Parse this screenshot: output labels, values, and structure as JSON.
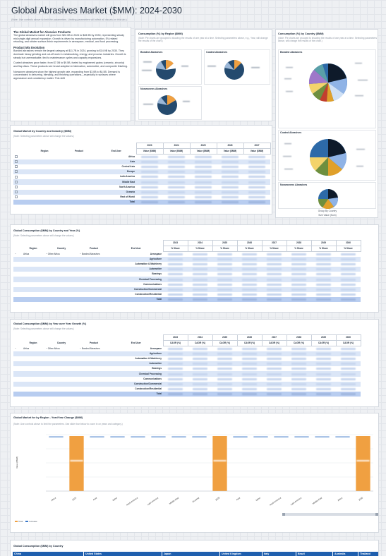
{
  "page": {
    "title": "Global Abrasives Market ($MM): 2024-2030",
    "subtitle": "(Note: Use controls above to limit the parameters. Limiting parameters will affect all visuals on this tab.)"
  },
  "colors": {
    "accent": "#1f5fae",
    "band": "#dbe6f7",
    "total": "#b8cdf0",
    "orange": "#f0a041",
    "blue_line": "#3a78c9"
  },
  "summary": {
    "heading": "The Global Market for Abrasive Products",
    "para1": "The global abrasives market will grow from $22.0B in 2024 to $28.9B by 2030, representing steady mid-single-digit annual expansion. Growth is driven by manufacturing automation, EV-related retooling, and stricter surface-finish requirements in aerospace, medical, and food processing.",
    "subheading": "Product Mix Evolution",
    "para2": "Bonded abrasives remain the largest category at $11.7B in 2024, growing to $14.9B by 2030. They dominate heavy grinding and cut-off work in metalworking, energy, and process industries. Growth is steady but unremarkable, tied to maintenance cycles and capacity expansions.",
    "para3": "Coated abrasives grow faster, from $7.0B to $9.5B, fueled by engineered grains (ceramic, zirconia) and flap discs. These products see broad adoption in fabrication, automotive, and composite finishing.",
    "para4": "Nonwoven abrasives show the highest growth rate, expanding from $3.0B to $4.5B. Demand is concentrated in deburring, blending, and finishing operations—especially in surfaces where appearance and consistency matter. This shift"
  },
  "region_pies": {
    "heading": "Consumption (%) by Region ($MM)",
    "note": "(Note: Pie charts are grouped to showing the results of one year at a time. Selecting parameters above, e.g., Year, will change the results of the chart.)",
    "bonded": {
      "title": "Bonded Abrasives"
    },
    "coated": {
      "title": "Coated Abrasives"
    },
    "nonwoven": {
      "title": "Nonwovens Abrasives"
    }
  },
  "country_pies": {
    "heading": "Consumption (%) by Country ($MM)",
    "note": "(Note: Pie charts are grouped to showing the results of one year at a time. Selecting parameters above, will change the results of the chart.)",
    "bonded": {
      "title": "Bonded Abrasives"
    },
    "coated": {
      "title": "Coated Abrasives"
    },
    "nonwoven": {
      "title": "Nonwovens Abrasives"
    },
    "group_by": "Group By Country",
    "size_value": "Size Value (Sum)"
  },
  "market_table": {
    "heading": "Global Market by Country and Industry ($MM)",
    "note": "(Note: Selecting parameters above will change the values.)",
    "col_region": "Region",
    "col_product": "Product",
    "col_enduser": "End User",
    "years": [
      "2023",
      "2024",
      "2025",
      "2026",
      "2027"
    ],
    "value_label": "Value ($MM)",
    "rows": [
      "Africa",
      "Asia",
      "Central Asia",
      "Europe",
      "Latin America",
      "Middle East",
      "North America",
      "Oceania",
      "Rest of World",
      "Total"
    ]
  },
  "consumption_table": {
    "heading": "Global  Consumption ($MM) by Country and Year (%)",
    "note": "(Note: Selecting parameters above will change the values.)",
    "col_region": "Region",
    "col_country": "Country",
    "col_product": "Product",
    "col_enduser": "End User",
    "region_value": "Africa",
    "country_value": "Other Africa",
    "product_value": "Bonded Abrasives",
    "years": [
      "2023",
      "2024",
      "2025",
      "2026",
      "2027",
      "2028",
      "2029",
      "2030"
    ],
    "share_label": "% Share",
    "rows": [
      "Aerospace",
      "Agriculture",
      "Automation & Machinery",
      "Automotive",
      "Bearings",
      "Chemical Processing",
      "Communications",
      "Construction/Commercial",
      "Construction/Residential",
      "Total"
    ]
  },
  "growth_table": {
    "heading": "Global Consumption ($MM) by Year over Year Growth (%)",
    "note": "(Note: Selecting parameters above will change the values.)",
    "col_region": "Region",
    "col_country": "Country",
    "col_product": "Product",
    "col_enduser": "End User",
    "region_value": "Africa",
    "country_value": "Other Africa",
    "product_value": "Bonded Abrasives",
    "years": [
      "2023",
      "2024",
      "2025",
      "2026",
      "2027",
      "2028",
      "2029",
      "2030"
    ],
    "cagr_label": "CAGR (%)",
    "rows": [
      "Aerospace",
      "Agriculture",
      "Automation & Machinery",
      "Automotive",
      "Bearings",
      "Chemical Processing",
      "Communications",
      "Construction/Commercial",
      "Construction/Residential",
      "Total"
    ]
  },
  "yoy_chart": {
    "heading": "Global Market for by Region - Year/Year Change ($MM)",
    "note": "(Note: Use controls above to limit the parameters. Use slider bar below to zoom in on years and category.)",
    "ylabel": "Value ($MM)",
    "legend": [
      "Total",
      "Increase"
    ]
  },
  "chart_data": {
    "type": "bar",
    "categories": [
      "Africa",
      "2024",
      "Asia",
      "Other",
      "North America",
      "Latin America",
      "Middle East",
      "Oceania",
      "2028",
      "Asia",
      "Other",
      "North America",
      "Latin America",
      "Middle East",
      "Africa",
      "2030"
    ],
    "series": [
      {
        "name": "Total",
        "values": [
          0,
          1,
          0,
          0,
          0,
          0,
          0,
          0,
          1,
          0,
          0,
          0,
          0,
          0,
          0,
          1
        ]
      },
      {
        "name": "Increase",
        "values": [
          0.0,
          0,
          0.015,
          0.01,
          0.007,
          0.005,
          0.004,
          0.002,
          0,
          0.018,
          0.012,
          0.008,
          0.006,
          0.004,
          0.002,
          0
        ]
      }
    ]
  },
  "country_strip": {
    "heading": "Global  Consumption ($MM) by Country",
    "tabs": [
      "China",
      "United States",
      "Japan",
      "United Kingdom",
      "Italy",
      "Brazil",
      "Australia",
      "Thailand"
    ]
  }
}
